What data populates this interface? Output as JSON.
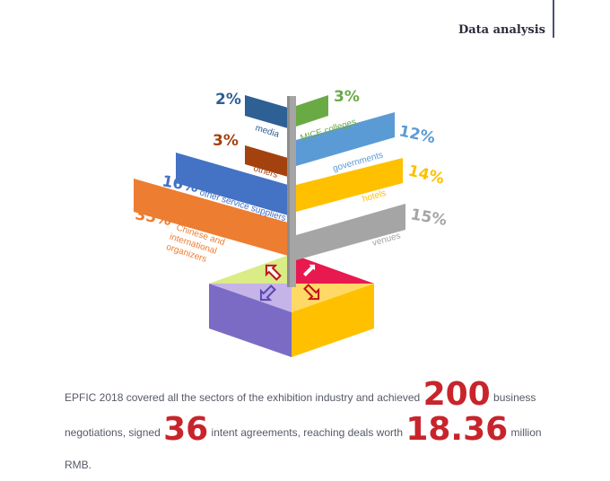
{
  "header": {
    "title": "Data analysis"
  },
  "chart_data": {
    "type": "bar",
    "categories": [
      "media",
      "MICE colleges",
      "others",
      "governments",
      "other service suppliers",
      "hotels",
      "Chinese and international organizers",
      "venues"
    ],
    "values": [
      2,
      3,
      3,
      12,
      16,
      14,
      35,
      15
    ],
    "value_labels": [
      "2%",
      "3%",
      "3%",
      "12%",
      "16%",
      "14%",
      "35%",
      "15%"
    ],
    "label_lines": {
      "organizers": [
        "Chinese and",
        "international",
        "organizers"
      ]
    },
    "colors": {
      "media": "#2e5f95",
      "mice": "#6aaa45",
      "others": "#a3420f",
      "governments": "#5b9bd5",
      "service": "#4472c4",
      "hotels": "#ffc000",
      "organizers": "#ed7d31",
      "venues": "#a5a5a5"
    }
  },
  "summary": {
    "part1": "EPFIC 2018 covered all the sectors of the exhibition industry and achieved ",
    "num1": "200",
    "part2": " business negotiations, signed ",
    "num2": "36",
    "part3": " intent agreements, reaching deals worth ",
    "num3": "18.36",
    "part4": " million RMB."
  }
}
